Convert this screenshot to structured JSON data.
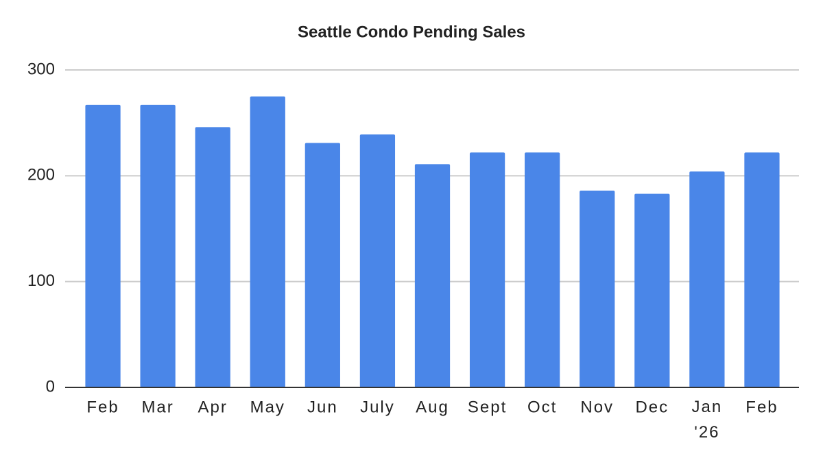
{
  "chart_data": {
    "type": "bar",
    "title": "Seattle Condo Pending Sales",
    "categories": [
      "Feb",
      "Mar",
      "Apr",
      "May",
      "Jun",
      "July",
      "Aug",
      "Sept",
      "Oct",
      "Nov",
      "Dec",
      "Jan '26",
      "Feb"
    ],
    "values": [
      267,
      267,
      246,
      275,
      231,
      239,
      211,
      222,
      222,
      186,
      183,
      204,
      222
    ],
    "color": "#4a86e8",
    "ylim": [
      0,
      300
    ],
    "yticks": [
      0,
      100,
      200,
      300
    ],
    "grid": true
  }
}
